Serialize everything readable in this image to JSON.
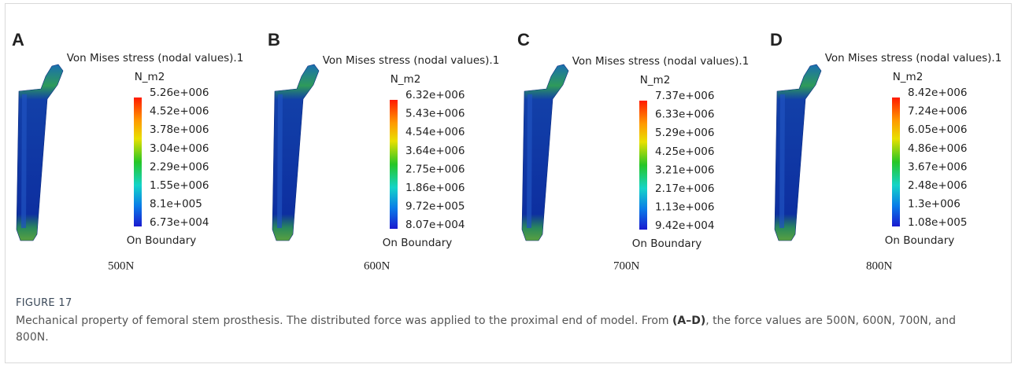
{
  "figure": {
    "panels": [
      {
        "letter": "A",
        "title": "Von Mises stress (nodal values).1",
        "unit": "N_m2",
        "labels": [
          "5.26e+006",
          "4.52e+006",
          "3.78e+006",
          "3.04e+006",
          "2.29e+006",
          "1.55e+006",
          "8.1e+005",
          "6.73e+004"
        ],
        "boundary": "On Boundary",
        "force": "500N"
      },
      {
        "letter": "B",
        "title": "Von Mises stress (nodal values).1",
        "unit": "N_m2",
        "labels": [
          "6.32e+006",
          "5.43e+006",
          "4.54e+006",
          "3.64e+006",
          "2.75e+006",
          "1.86e+006",
          "9.72e+005",
          "8.07e+004"
        ],
        "boundary": "On Boundary",
        "force": "600N"
      },
      {
        "letter": "C",
        "title": "Von Mises stress (nodal values).1",
        "unit": "N_m2",
        "labels": [
          "7.37e+006",
          "6.33e+006",
          "5.29e+006",
          "4.25e+006",
          "3.21e+006",
          "2.17e+006",
          "1.13e+006",
          "9.42e+004"
        ],
        "boundary": "On Boundary",
        "force": "700N"
      },
      {
        "letter": "D",
        "title": "Von Mises stress (nodal values).1",
        "unit": "N_m2",
        "labels": [
          "8.42e+006",
          "7.24e+006",
          "6.05e+006",
          "4.86e+006",
          "3.67e+006",
          "2.48e+006",
          "1.3e+006",
          "1.08e+005"
        ],
        "boundary": "On Boundary",
        "force": "800N"
      }
    ],
    "caption": {
      "label": "FIGURE 17",
      "text_before": "Mechanical property of femoral stem prosthesis. The distributed force was applied to the proximal end of model. From ",
      "text_bold": "(A–D)",
      "text_after": ", the force values are 500N, 600N, 700N, and 800N."
    }
  }
}
